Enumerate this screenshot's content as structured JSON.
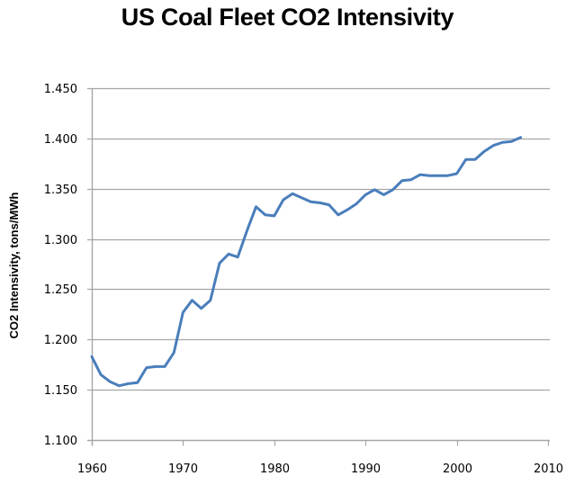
{
  "chart_data": {
    "type": "line",
    "title": "US Coal Fleet CO2 Intensivity",
    "xlabel": "",
    "ylabel": "CO2 Intensivity,  tons/MWh",
    "xlim": [
      1960,
      2010
    ],
    "ylim": [
      1.1,
      1.45
    ],
    "xticks": [
      1960,
      1970,
      1980,
      1990,
      2000,
      2010
    ],
    "xtick_labels": [
      "1960",
      "1970",
      "1980",
      "1990",
      "2000",
      "2010"
    ],
    "yticks": [
      1.1,
      1.15,
      1.2,
      1.25,
      1.3,
      1.35,
      1.4,
      1.45
    ],
    "ytick_labels": [
      "1.100",
      "1.150",
      "1.200",
      "1.250",
      "1.300",
      "1.350",
      "1.400",
      "1.450"
    ],
    "grid": "horizontal",
    "legend": "none",
    "series": [
      {
        "name": "CO2 Intensivity",
        "color": "#4a7ebb",
        "x": [
          1960,
          1961,
          1962,
          1963,
          1964,
          1965,
          1966,
          1967,
          1968,
          1969,
          1970,
          1971,
          1972,
          1973,
          1974,
          1975,
          1976,
          1977,
          1978,
          1979,
          1980,
          1981,
          1982,
          1983,
          1984,
          1985,
          1986,
          1987,
          1988,
          1989,
          1990,
          1991,
          1992,
          1993,
          1994,
          1995,
          1996,
          1997,
          1998,
          1999,
          2000,
          2001,
          2002,
          2003,
          2004,
          2005,
          2006,
          2007
        ],
        "values": [
          1.183,
          1.165,
          1.158,
          1.154,
          1.156,
          1.157,
          1.172,
          1.173,
          1.173,
          1.187,
          1.227,
          1.239,
          1.231,
          1.239,
          1.276,
          1.285,
          1.282,
          1.308,
          1.332,
          1.324,
          1.323,
          1.339,
          1.345,
          1.341,
          1.337,
          1.336,
          1.334,
          1.324,
          1.329,
          1.335,
          1.344,
          1.349,
          1.344,
          1.349,
          1.358,
          1.359,
          1.364,
          1.363,
          1.363,
          1.363,
          1.365,
          1.379,
          1.379,
          1.387,
          1.393,
          1.396,
          1.397,
          1.401
        ]
      }
    ]
  },
  "colors": {
    "gridline": "#a6a6a6",
    "axis": "#a6a6a6",
    "series": "#4a7ebb"
  }
}
